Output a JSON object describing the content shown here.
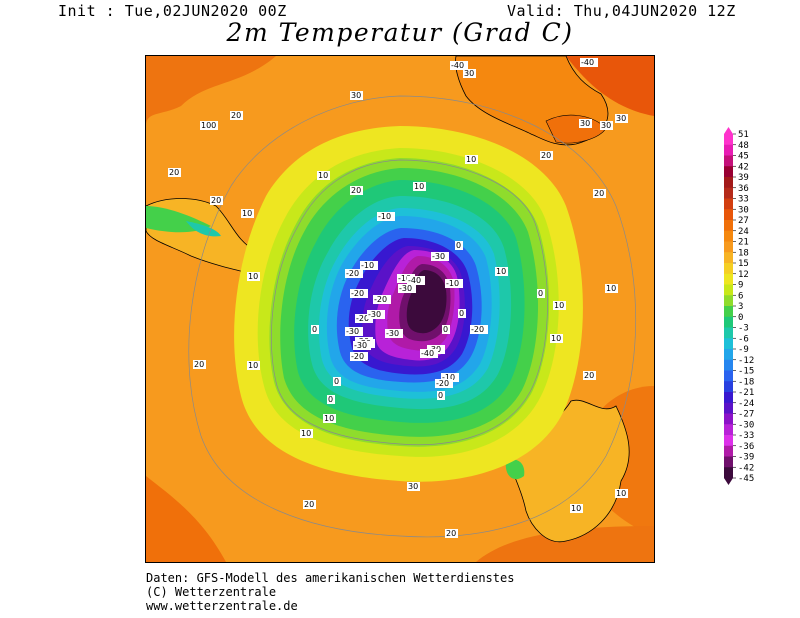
{
  "header": {
    "init": "Init : Tue,02JUN2020 00Z",
    "valid": "Valid: Thu,04JUN2020 12Z",
    "title": "2m Temperatur (Grad C)"
  },
  "credits": [
    "Daten: GFS-Modell des amerikanischen Wetterdienstes",
    "(C) Wetterzentrale",
    "www.wetterzentrale.de"
  ],
  "legend": {
    "ticks": [
      "51",
      "48",
      "45",
      "42",
      "39",
      "36",
      "33",
      "30",
      "27",
      "24",
      "21",
      "18",
      "15",
      "12",
      "9",
      "6",
      "3",
      "0",
      "-3",
      "-6",
      "-9",
      "-12",
      "-15",
      "-18",
      "-21",
      "-24",
      "-27",
      "-30",
      "-33",
      "-36",
      "-39",
      "-42",
      "-45"
    ],
    "colors": [
      "#ff33cc",
      "#e81cb4",
      "#c4107a",
      "#990033",
      "#a31a1a",
      "#b52a1a",
      "#d23e10",
      "#e8560a",
      "#f0700a",
      "#f5880f",
      "#f79a1e",
      "#f7b425",
      "#f5cf24",
      "#eee621",
      "#c8e81a",
      "#8fdc2c",
      "#44d04a",
      "#1fc878",
      "#1ec8aa",
      "#1ec0d8",
      "#22a6ea",
      "#2686ef",
      "#2a63ef",
      "#2840e0",
      "#3818d0",
      "#5a12c8",
      "#8c12c8",
      "#b822d8",
      "#dd30ea",
      "#b01aa8",
      "#70106c",
      "#3c0a3c"
    ]
  },
  "map_labels": [
    "20",
    "20",
    "20",
    "20",
    "20",
    "20",
    "20",
    "20",
    "20",
    "20",
    "20",
    "20",
    "10",
    "10",
    "10",
    "10",
    "10",
    "10",
    "10",
    "10",
    "10",
    "10",
    "10",
    "10",
    "10",
    "10",
    "0",
    "0",
    "0",
    "0",
    "0",
    "0",
    "0",
    "0",
    "-10",
    "-10",
    "-10",
    "-10",
    "-10",
    "-20",
    "-20",
    "-20",
    "-20",
    "-20",
    "-20",
    "-20",
    "-20",
    "-30",
    "-30",
    "-30",
    "-30",
    "-30",
    "-30",
    "-30",
    "-30",
    "-40",
    "-40",
    "-40",
    "-40",
    "30",
    "30",
    "30",
    "30",
    "30",
    "30",
    "100"
  ]
}
